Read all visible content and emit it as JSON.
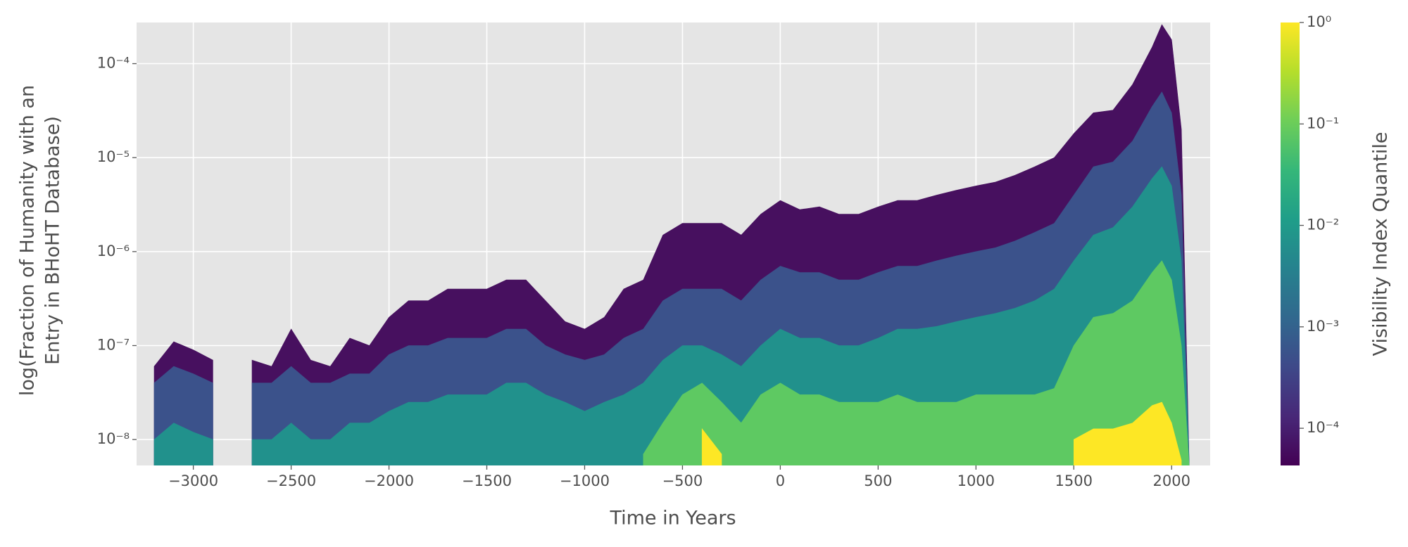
{
  "chart_data": {
    "type": "area",
    "ylabel": [
      "log(Fraction of Humanity with an",
      "Entry in BHoHT Database)"
    ],
    "xlabel": "Time in Years",
    "xlim": [
      -3290,
      2197
    ],
    "ylim": [
      5.3e-09,
      0.000274
    ],
    "yscale": "log",
    "grid": true,
    "xticks": [
      {
        "value": -3000,
        "label": "−3000"
      },
      {
        "value": -2500,
        "label": "−2500"
      },
      {
        "value": -2000,
        "label": "−2000"
      },
      {
        "value": -1500,
        "label": "−1500"
      },
      {
        "value": -1000,
        "label": "−1000"
      },
      {
        "value": -500,
        "label": "−500"
      },
      0,
      500,
      1000,
      1500,
      2000
    ],
    "yticks": [
      {
        "value": 1e-08,
        "label": "10⁻⁸"
      },
      {
        "value": 1e-07,
        "label": "10⁻⁷"
      },
      {
        "value": 1e-06,
        "label": "10⁻⁶"
      },
      {
        "value": 1e-05,
        "label": "10⁻⁵"
      },
      {
        "value": 0.0001,
        "label": "10⁻⁴"
      }
    ],
    "x": [
      -3200,
      -3100,
      -3000,
      -2900,
      -2800,
      -2700,
      -2600,
      -2500,
      -2400,
      -2300,
      -2200,
      -2100,
      -2000,
      -1900,
      -1800,
      -1700,
      -1600,
      -1500,
      -1400,
      -1300,
      -1200,
      -1100,
      -1000,
      -900,
      -800,
      -700,
      -600,
      -500,
      -400,
      -300,
      -200,
      -100,
      0,
      100,
      200,
      300,
      400,
      500,
      600,
      700,
      800,
      900,
      1000,
      1100,
      1200,
      1300,
      1400,
      1500,
      1600,
      1700,
      1800,
      1900,
      1950,
      2000,
      2050,
      2090
    ],
    "series": [
      {
        "color": "#47105f",
        "values": [
          6e-08,
          1.1e-07,
          9e-08,
          7e-08,
          null,
          7e-08,
          6e-08,
          1.5e-07,
          7e-08,
          6e-08,
          1.2e-07,
          1e-07,
          2e-07,
          3e-07,
          3e-07,
          4e-07,
          4e-07,
          4e-07,
          5e-07,
          5e-07,
          3e-07,
          1.8e-07,
          1.5e-07,
          2e-07,
          4e-07,
          5e-07,
          1.5e-06,
          2e-06,
          2e-06,
          2e-06,
          1.5e-06,
          2.5e-06,
          3.5e-06,
          2.8e-06,
          3e-06,
          2.5e-06,
          2.5e-06,
          3e-06,
          3.5e-06,
          3.5e-06,
          4e-06,
          4.5e-06,
          5e-06,
          5.5e-06,
          6.5e-06,
          8e-06,
          1e-05,
          1.8e-05,
          3e-05,
          3.2e-05,
          6e-05,
          0.00015,
          0.00026,
          0.00018,
          2e-05,
          5e-09
        ]
      },
      {
        "color": "#3b528b",
        "values": [
          4e-08,
          6e-08,
          5e-08,
          4e-08,
          null,
          4e-08,
          4e-08,
          6e-08,
          4e-08,
          4e-08,
          5e-08,
          5e-08,
          8e-08,
          1e-07,
          1e-07,
          1.2e-07,
          1.2e-07,
          1.2e-07,
          1.5e-07,
          1.5e-07,
          1e-07,
          8e-08,
          7e-08,
          8e-08,
          1.2e-07,
          1.5e-07,
          3e-07,
          4e-07,
          4e-07,
          4e-07,
          3e-07,
          5e-07,
          7e-07,
          6e-07,
          6e-07,
          5e-07,
          5e-07,
          6e-07,
          7e-07,
          7e-07,
          8e-07,
          9e-07,
          1e-06,
          1.1e-06,
          1.3e-06,
          1.6e-06,
          2e-06,
          4e-06,
          8e-06,
          9e-06,
          1.5e-05,
          3.5e-05,
          5e-05,
          3e-05,
          4e-06,
          5e-09
        ]
      },
      {
        "color": "#21918c",
        "values": [
          1e-08,
          1.5e-08,
          1.2e-08,
          1e-08,
          null,
          1e-08,
          1e-08,
          1.5e-08,
          1e-08,
          1e-08,
          1.5e-08,
          1.5e-08,
          2e-08,
          2.5e-08,
          2.5e-08,
          3e-08,
          3e-08,
          3e-08,
          4e-08,
          4e-08,
          3e-08,
          2.5e-08,
          2e-08,
          2.5e-08,
          3e-08,
          4e-08,
          7e-08,
          1e-07,
          1e-07,
          8e-08,
          6e-08,
          1e-07,
          1.5e-07,
          1.2e-07,
          1.2e-07,
          1e-07,
          1e-07,
          1.2e-07,
          1.5e-07,
          1.5e-07,
          1.6e-07,
          1.8e-07,
          2e-07,
          2.2e-07,
          2.5e-07,
          3e-07,
          4e-07,
          8e-07,
          1.5e-06,
          1.8e-06,
          3e-06,
          6e-06,
          8e-06,
          5e-06,
          8e-07,
          5e-09
        ]
      },
      {
        "color": "#5ec962",
        "values": [
          null,
          null,
          null,
          null,
          null,
          null,
          null,
          null,
          null,
          null,
          null,
          null,
          null,
          null,
          null,
          null,
          null,
          null,
          null,
          null,
          null,
          null,
          null,
          null,
          null,
          7e-09,
          1.5e-08,
          3e-08,
          4e-08,
          2.5e-08,
          1.5e-08,
          3e-08,
          4e-08,
          3e-08,
          3e-08,
          2.5e-08,
          2.5e-08,
          2.5e-08,
          3e-08,
          2.5e-08,
          2.5e-08,
          2.5e-08,
          3e-08,
          3e-08,
          3e-08,
          3e-08,
          3.5e-08,
          1e-07,
          2e-07,
          2.2e-07,
          3e-07,
          6e-07,
          8e-07,
          5e-07,
          1e-07,
          5e-09
        ]
      },
      {
        "color": "#fde725",
        "values": [
          null,
          null,
          null,
          null,
          null,
          null,
          null,
          null,
          null,
          null,
          null,
          null,
          null,
          null,
          null,
          null,
          null,
          null,
          null,
          null,
          null,
          null,
          null,
          null,
          null,
          null,
          null,
          null,
          1.3e-08,
          7e-09,
          null,
          null,
          null,
          null,
          null,
          null,
          null,
          null,
          null,
          null,
          null,
          null,
          null,
          null,
          null,
          null,
          null,
          1e-08,
          1.3e-08,
          1.3e-08,
          1.5e-08,
          2.3e-08,
          2.5e-08,
          1.5e-08,
          6e-09,
          null
        ]
      }
    ],
    "colorbar": {
      "label": "Visibility Index Quantile",
      "colormap": "viridis",
      "scale": "log",
      "lim": [
        4.3e-05,
        1
      ],
      "ticks": [
        {
          "value": 0.0001,
          "label": "10⁻⁴"
        },
        {
          "value": 0.001,
          "label": "10⁻³"
        },
        {
          "value": 0.01,
          "label": "10⁻²"
        },
        {
          "value": 0.1,
          "label": "10⁻¹"
        },
        {
          "value": 1,
          "label": "10⁰"
        }
      ]
    }
  }
}
